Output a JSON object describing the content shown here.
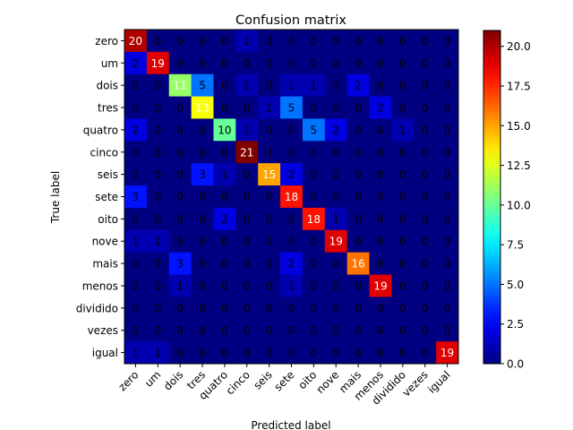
{
  "chart_data": {
    "type": "heatmap",
    "title": "Confusion matrix",
    "xlabel": "Predicted label",
    "ylabel": "True label",
    "colormap": "jet",
    "vmin": 0,
    "vmax": 21,
    "colorbar_ticks": [
      "0.0",
      "2.5",
      "5.0",
      "7.5",
      "10.0",
      "12.5",
      "15.0",
      "17.5",
      "20.0"
    ],
    "colorbar_tick_values": [
      0,
      2.5,
      5,
      7.5,
      10,
      12.5,
      15,
      17.5,
      20
    ],
    "labels": [
      "zero",
      "um",
      "dois",
      "tres",
      "quatro",
      "cinco",
      "seis",
      "sete",
      "oito",
      "nove",
      "mais",
      "menos",
      "dividido",
      "vezes",
      "igual"
    ],
    "matrix": [
      [
        20,
        0,
        0,
        0,
        0,
        1,
        0,
        0,
        0,
        0,
        0,
        0,
        0,
        0,
        0
      ],
      [
        2,
        19,
        0,
        0,
        0,
        0,
        0,
        0,
        0,
        0,
        0,
        0,
        0,
        0,
        0
      ],
      [
        0,
        0,
        11,
        5,
        0,
        1,
        0,
        1,
        1,
        0,
        2,
        0,
        0,
        0,
        0
      ],
      [
        0,
        0,
        0,
        13,
        0,
        0,
        1,
        5,
        0,
        0,
        0,
        2,
        0,
        0,
        0
      ],
      [
        2,
        0,
        0,
        0,
        10,
        1,
        0,
        0,
        5,
        2,
        0,
        0,
        1,
        0,
        0
      ],
      [
        0,
        0,
        0,
        0,
        0,
        21,
        0,
        0,
        0,
        0,
        0,
        0,
        0,
        0,
        0
      ],
      [
        0,
        0,
        0,
        3,
        1,
        0,
        15,
        2,
        0,
        0,
        0,
        0,
        0,
        0,
        0
      ],
      [
        3,
        0,
        0,
        0,
        0,
        0,
        0,
        18,
        0,
        0,
        0,
        0,
        0,
        0,
        0
      ],
      [
        0,
        0,
        0,
        0,
        2,
        0,
        0,
        0,
        18,
        1,
        0,
        0,
        0,
        0,
        0
      ],
      [
        1,
        1,
        0,
        0,
        0,
        0,
        0,
        0,
        0,
        19,
        0,
        0,
        0,
        0,
        0
      ],
      [
        0,
        0,
        3,
        0,
        0,
        0,
        0,
        2,
        0,
        0,
        16,
        0,
        0,
        0,
        0
      ],
      [
        0,
        0,
        1,
        0,
        0,
        0,
        0,
        1,
        0,
        0,
        0,
        19,
        0,
        0,
        0
      ],
      [
        0,
        0,
        0,
        0,
        0,
        0,
        0,
        0,
        0,
        0,
        0,
        0,
        0,
        0,
        0
      ],
      [
        0,
        0,
        0,
        0,
        0,
        0,
        0,
        0,
        0,
        0,
        0,
        0,
        0,
        0,
        0
      ],
      [
        1,
        1,
        0,
        0,
        0,
        0,
        0,
        0,
        0,
        0,
        0,
        0,
        0,
        0,
        19
      ]
    ]
  }
}
